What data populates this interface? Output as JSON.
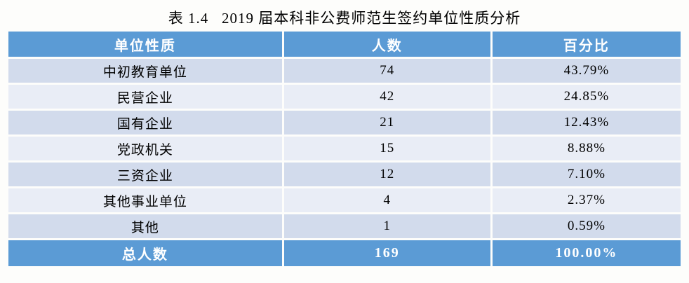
{
  "title": "表 1.4   2019 届本科非公费师范生签约单位性质分析",
  "table": {
    "columns": [
      {
        "key": "nature",
        "label": "单位性质"
      },
      {
        "key": "count",
        "label": "人数"
      },
      {
        "key": "percent",
        "label": "百分比"
      }
    ],
    "rows": [
      {
        "nature": "中初教育单位",
        "count": "74",
        "percent": "43.79%"
      },
      {
        "nature": "民营企业",
        "count": "42",
        "percent": "24.85%"
      },
      {
        "nature": "国有企业",
        "count": "21",
        "percent": "12.43%"
      },
      {
        "nature": "党政机关",
        "count": "15",
        "percent": "8.88%"
      },
      {
        "nature": "三资企业",
        "count": "12",
        "percent": "7.10%"
      },
      {
        "nature": "其他事业单位",
        "count": "4",
        "percent": "2.37%"
      },
      {
        "nature": "其他",
        "count": "1",
        "percent": "0.59%"
      }
    ],
    "footer": {
      "nature": "总人数",
      "count": "169",
      "percent": "100.00%"
    }
  },
  "colors": {
    "header_bg": "#5B9BD5",
    "header_text": "#FFFFFF",
    "band_dark": "#D2DBEC",
    "band_light": "#E9EDF6",
    "body_text": "#000000",
    "page_bg": "#FDFDFB"
  },
  "chart_data": {
    "type": "table",
    "title": "表 1.4   2019 届本科非公费师范生签约单位性质分析",
    "columns": [
      "单位性质",
      "人数",
      "百分比"
    ],
    "rows": [
      [
        "中初教育单位",
        74,
        "43.79%"
      ],
      [
        "民营企业",
        42,
        "24.85%"
      ],
      [
        "国有企业",
        21,
        "12.43%"
      ],
      [
        "党政机关",
        15,
        "8.88%"
      ],
      [
        "三资企业",
        12,
        "7.10%"
      ],
      [
        "其他事业单位",
        4,
        "2.37%"
      ],
      [
        "其他",
        1,
        "0.59%"
      ],
      [
        "总人数",
        169,
        "100.00%"
      ]
    ]
  }
}
